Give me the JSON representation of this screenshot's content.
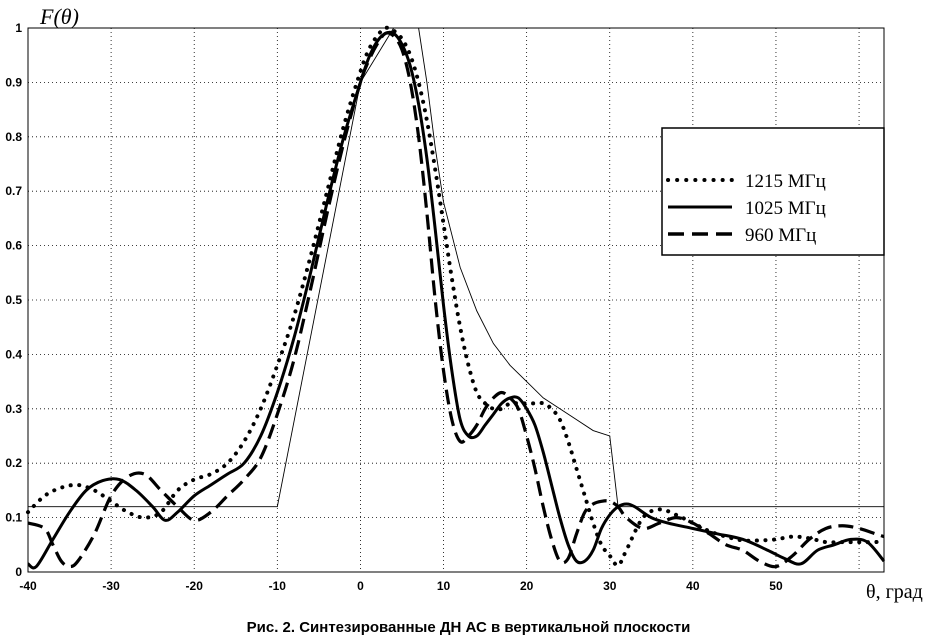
{
  "caption": "Рис. 2. Синтезированные ДН АС в вертикальной плоскости",
  "chart_data": {
    "type": "line",
    "ylabel": "F(θ)",
    "xlabel": "θ, град",
    "xlim": [
      -40,
      63
    ],
    "ylim": [
      0,
      1
    ],
    "xticks": [
      -40,
      -30,
      -20,
      -10,
      0,
      10,
      20,
      30,
      40,
      50
    ],
    "yticks": [
      0,
      0.1,
      0.2,
      0.3,
      0.4,
      0.5,
      0.6,
      0.7,
      0.8,
      0.9,
      1
    ],
    "grid": true,
    "legend_position": "right",
    "series": [
      {
        "name": "1215 МГц",
        "style": "dotted",
        "x": [
          -40,
          -38,
          -36,
          -34,
          -32,
          -30,
          -28,
          -26,
          -24,
          -22,
          -20,
          -18,
          -16,
          -14,
          -12,
          -10,
          -8,
          -6,
          -4,
          -2,
          0,
          1,
          2,
          3,
          4,
          5,
          6,
          7,
          8,
          9,
          10,
          11,
          12,
          13,
          14,
          15,
          16,
          17,
          18,
          19,
          20,
          21,
          22,
          23,
          24,
          25,
          26,
          27,
          28,
          29,
          30,
          31,
          32,
          34,
          36,
          38,
          40,
          42,
          44,
          46,
          48,
          50,
          52,
          54,
          56,
          58,
          60,
          62,
          63
        ],
        "y": [
          0.11,
          0.14,
          0.155,
          0.16,
          0.15,
          0.13,
          0.11,
          0.1,
          0.11,
          0.15,
          0.17,
          0.18,
          0.2,
          0.24,
          0.3,
          0.38,
          0.47,
          0.58,
          0.7,
          0.82,
          0.92,
          0.96,
          0.985,
          1.0,
          0.995,
          0.98,
          0.95,
          0.9,
          0.83,
          0.74,
          0.64,
          0.54,
          0.45,
          0.38,
          0.33,
          0.31,
          0.3,
          0.3,
          0.31,
          0.31,
          0.31,
          0.31,
          0.31,
          0.3,
          0.28,
          0.24,
          0.19,
          0.14,
          0.09,
          0.05,
          0.03,
          0.012,
          0.04,
          0.1,
          0.115,
          0.105,
          0.09,
          0.075,
          0.065,
          0.058,
          0.058,
          0.06,
          0.065,
          0.062,
          0.055,
          0.055,
          0.055,
          0.055,
          0.058
        ]
      },
      {
        "name": "1025 МГц",
        "style": "solid",
        "x": [
          -40,
          -39,
          -37,
          -35,
          -33,
          -31,
          -29,
          -27,
          -25,
          -23.5,
          -22,
          -20,
          -18,
          -16,
          -14,
          -12,
          -10,
          -8,
          -6,
          -4,
          -2,
          0,
          1,
          2,
          3,
          4,
          5,
          6,
          7,
          8,
          9,
          10,
          11,
          12,
          13,
          14,
          15,
          16,
          17,
          18,
          19,
          20,
          21,
          22,
          23,
          24,
          25,
          26,
          27,
          28,
          29,
          30,
          31,
          32,
          33,
          35,
          37,
          40,
          43,
          46,
          49,
          51,
          53,
          55,
          57,
          59,
          61,
          63
        ],
        "y": [
          0.015,
          0.01,
          0.06,
          0.11,
          0.15,
          0.168,
          0.17,
          0.15,
          0.12,
          0.095,
          0.11,
          0.14,
          0.16,
          0.18,
          0.2,
          0.25,
          0.33,
          0.43,
          0.55,
          0.68,
          0.8,
          0.9,
          0.945,
          0.975,
          0.99,
          0.99,
          0.97,
          0.93,
          0.86,
          0.76,
          0.63,
          0.49,
          0.37,
          0.28,
          0.25,
          0.25,
          0.27,
          0.29,
          0.31,
          0.32,
          0.32,
          0.3,
          0.27,
          0.22,
          0.16,
          0.1,
          0.05,
          0.02,
          0.02,
          0.04,
          0.08,
          0.105,
          0.12,
          0.125,
          0.12,
          0.1,
          0.09,
          0.08,
          0.07,
          0.06,
          0.04,
          0.025,
          0.015,
          0.04,
          0.05,
          0.06,
          0.055,
          0.02
        ]
      },
      {
        "name": "960 МГц",
        "style": "dashed",
        "x": [
          -40,
          -38,
          -37,
          -36,
          -35,
          -34,
          -32,
          -30,
          -28,
          -26,
          -24,
          -22,
          -20,
          -18,
          -16,
          -14,
          -12,
          -10,
          -8,
          -6,
          -4,
          -2,
          0,
          1,
          2,
          3,
          4,
          5,
          6,
          7,
          8,
          9,
          10,
          11,
          12,
          13,
          14,
          15,
          16,
          17,
          18,
          19,
          20,
          21,
          22,
          23,
          24,
          25,
          26,
          27,
          28,
          29,
          30,
          31,
          32,
          34,
          36,
          38,
          40,
          42,
          44,
          46,
          48,
          50,
          52,
          54,
          56,
          58,
          60,
          62,
          63
        ],
        "y": [
          0.09,
          0.08,
          0.05,
          0.02,
          0.01,
          0.02,
          0.07,
          0.14,
          0.175,
          0.18,
          0.15,
          0.12,
          0.095,
          0.11,
          0.14,
          0.17,
          0.21,
          0.29,
          0.39,
          0.52,
          0.66,
          0.79,
          0.9,
          0.94,
          0.97,
          0.99,
          0.985,
          0.96,
          0.9,
          0.8,
          0.66,
          0.5,
          0.37,
          0.28,
          0.24,
          0.25,
          0.27,
          0.3,
          0.32,
          0.33,
          0.32,
          0.3,
          0.25,
          0.19,
          0.12,
          0.06,
          0.02,
          0.025,
          0.07,
          0.11,
          0.125,
          0.13,
          0.13,
          0.12,
          0.1,
          0.08,
          0.09,
          0.1,
          0.09,
          0.07,
          0.05,
          0.04,
          0.02,
          0.01,
          0.03,
          0.06,
          0.08,
          0.085,
          0.08,
          0.07,
          0.065
        ]
      },
      {
        "name": "",
        "style": "thin",
        "x": [
          -40,
          -10,
          0,
          4,
          6.6,
          7,
          8,
          9,
          10,
          12,
          14,
          16,
          18,
          20,
          22,
          24,
          26,
          28,
          30,
          31,
          32,
          40,
          50,
          63
        ],
        "y": [
          0.12,
          0.12,
          0.9,
          1.0,
          1.0,
          1.0,
          0.9,
          0.78,
          0.68,
          0.56,
          0.48,
          0.42,
          0.38,
          0.35,
          0.32,
          0.3,
          0.28,
          0.26,
          0.25,
          0.12,
          0.12,
          0.12,
          0.12,
          0.12
        ]
      }
    ]
  }
}
